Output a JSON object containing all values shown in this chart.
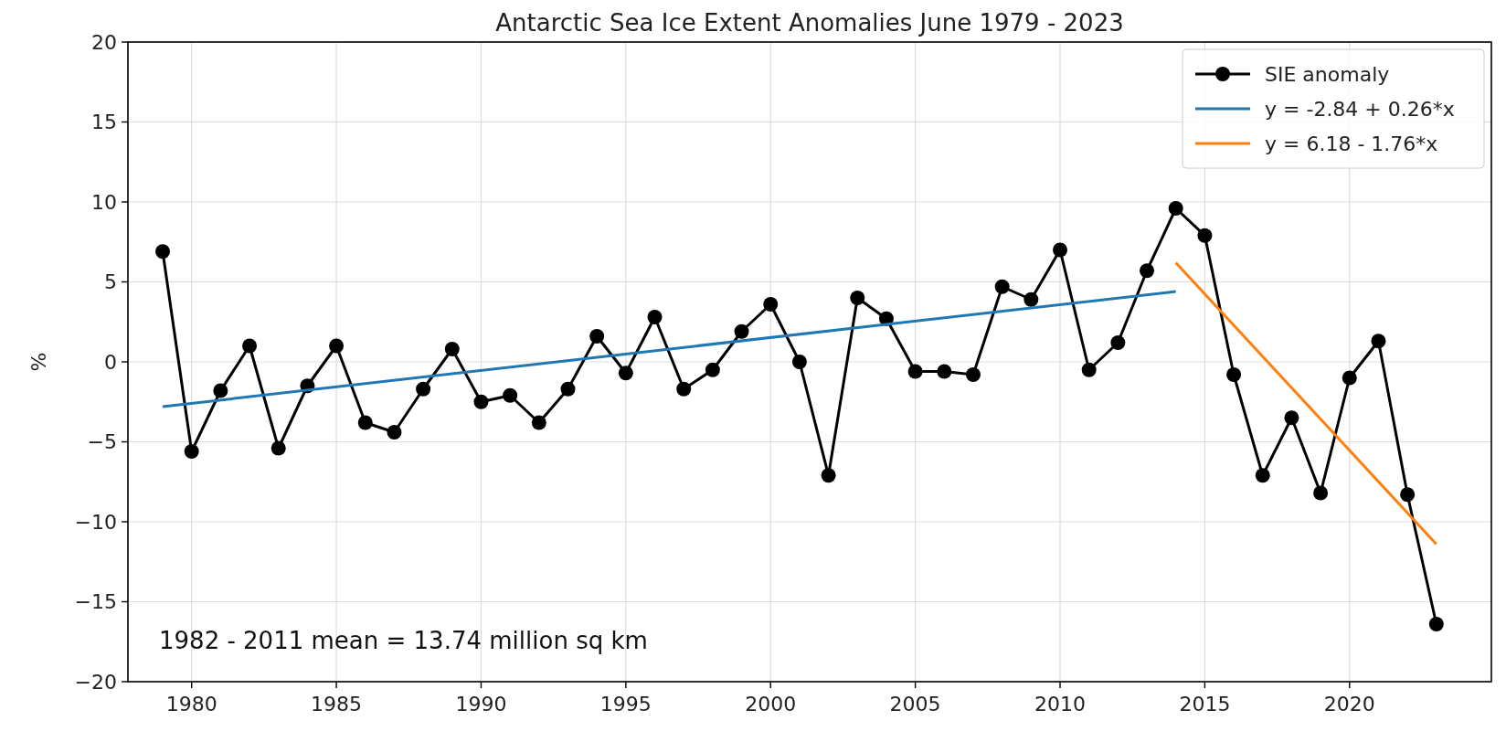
{
  "chart_data": {
    "type": "line",
    "title": "Antarctic Sea Ice Extent Anomalies June 1979 - 2023",
    "ylabel": "%",
    "xlim": [
      1977.8,
      2024.9
    ],
    "xticks": [
      1980,
      1985,
      1990,
      1995,
      2000,
      2005,
      2010,
      2015,
      2020
    ],
    "ylim": [
      -20,
      20
    ],
    "yticks": [
      -20,
      -15,
      -10,
      -5,
      0,
      5,
      10,
      15,
      20
    ],
    "grid": true,
    "legend": "top right",
    "annotations": [
      "1982 - 2011 mean = 13.74 million sq km"
    ],
    "series": [
      {
        "name": "SIE anomaly",
        "color": "#000000",
        "marker": "circle",
        "x": [
          1979,
          1980,
          1981,
          1982,
          1983,
          1984,
          1985,
          1986,
          1987,
          1988,
          1989,
          1990,
          1991,
          1992,
          1993,
          1994,
          1995,
          1996,
          1997,
          1998,
          1999,
          2000,
          2001,
          2002,
          2003,
          2004,
          2005,
          2006,
          2007,
          2008,
          2009,
          2010,
          2011,
          2012,
          2013,
          2014,
          2015,
          2016,
          2017,
          2018,
          2019,
          2020,
          2021,
          2022,
          2023
        ],
        "values": [
          6.9,
          -5.6,
          -1.8,
          1.0,
          -5.4,
          -1.5,
          1.0,
          -3.8,
          -4.4,
          -1.7,
          0.8,
          -2.5,
          -2.1,
          -3.8,
          -1.7,
          1.6,
          -0.7,
          2.8,
          -1.7,
          -0.5,
          1.9,
          3.6,
          0.0,
          -7.1,
          4.0,
          2.7,
          -0.6,
          -0.6,
          -0.8,
          4.7,
          3.9,
          7.0,
          -0.5,
          1.2,
          5.7,
          9.6,
          7.9,
          -0.8,
          -7.1,
          -3.5,
          -8.2,
          -1.0,
          1.3,
          -8.3,
          -16.4
        ]
      },
      {
        "name": "y = -2.84 + 0.26*x",
        "color": "#1f77b4",
        "marker": "none",
        "x": [
          1979,
          2014
        ],
        "values": [
          -2.8,
          4.4
        ]
      },
      {
        "name": "y = 6.18 - 1.76*x",
        "color": "#ff7f0e",
        "marker": "none",
        "x": [
          2014,
          2023
        ],
        "values": [
          6.2,
          -11.4
        ]
      }
    ]
  }
}
